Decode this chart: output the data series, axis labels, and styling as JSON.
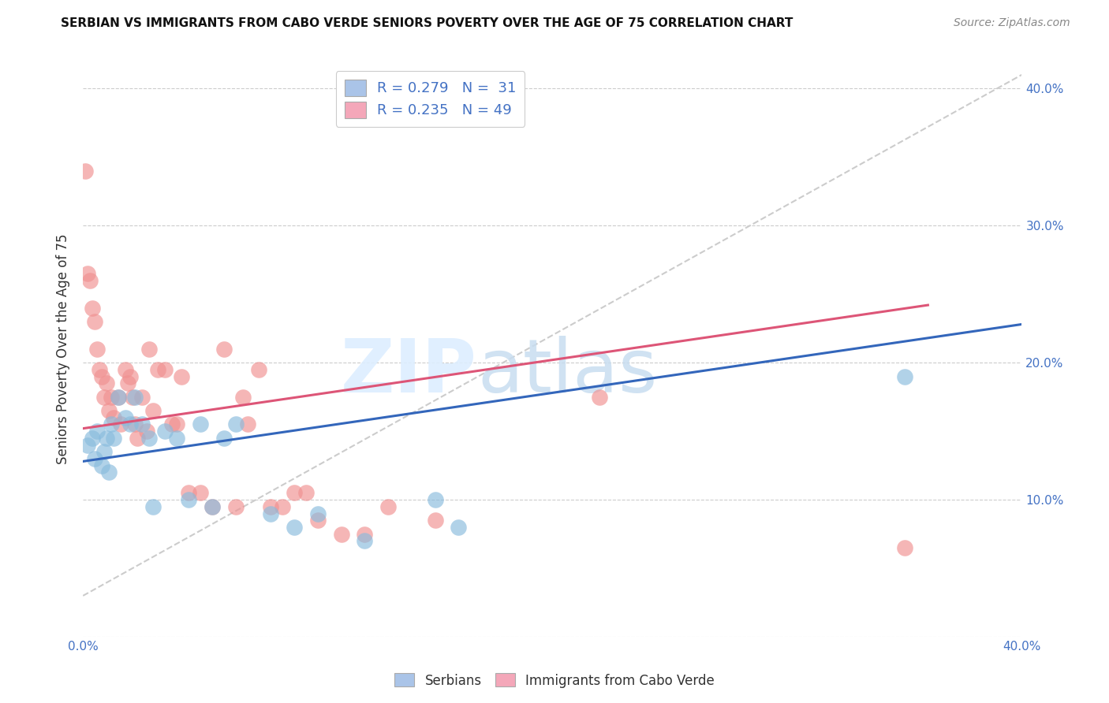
{
  "title": "SERBIAN VS IMMIGRANTS FROM CABO VERDE SENIORS POVERTY OVER THE AGE OF 75 CORRELATION CHART",
  "source": "Source: ZipAtlas.com",
  "ylabel": "Seniors Poverty Over the Age of 75",
  "xlim": [
    0.0,
    0.4
  ],
  "ylim": [
    0.0,
    0.42
  ],
  "legend1_label": "R = 0.279   N =  31",
  "legend2_label": "R = 0.235   N = 49",
  "legend1_color": "#aac4e8",
  "legend2_color": "#f4a7b9",
  "serbian_color": "#88bbdd",
  "cabo_verde_color": "#f09090",
  "serbian_line_color": "#3366bb",
  "cabo_verde_line_color": "#dd5577",
  "dashed_line_color": "#cccccc",
  "serbian_scatter_x": [
    0.002,
    0.004,
    0.005,
    0.006,
    0.008,
    0.009,
    0.01,
    0.011,
    0.012,
    0.013,
    0.015,
    0.018,
    0.02,
    0.022,
    0.025,
    0.028,
    0.03,
    0.035,
    0.04,
    0.045,
    0.05,
    0.055,
    0.06,
    0.065,
    0.08,
    0.09,
    0.1,
    0.12,
    0.15,
    0.16,
    0.35
  ],
  "serbian_scatter_y": [
    0.14,
    0.145,
    0.13,
    0.15,
    0.125,
    0.135,
    0.145,
    0.12,
    0.155,
    0.145,
    0.175,
    0.16,
    0.155,
    0.175,
    0.155,
    0.145,
    0.095,
    0.15,
    0.145,
    0.1,
    0.155,
    0.095,
    0.145,
    0.155,
    0.09,
    0.08,
    0.09,
    0.07,
    0.1,
    0.08,
    0.19
  ],
  "cabo_verde_scatter_x": [
    0.001,
    0.002,
    0.003,
    0.004,
    0.005,
    0.006,
    0.007,
    0.008,
    0.009,
    0.01,
    0.011,
    0.012,
    0.013,
    0.015,
    0.016,
    0.018,
    0.019,
    0.02,
    0.021,
    0.022,
    0.023,
    0.025,
    0.027,
    0.028,
    0.03,
    0.032,
    0.035,
    0.038,
    0.04,
    0.042,
    0.045,
    0.05,
    0.055,
    0.06,
    0.065,
    0.068,
    0.07,
    0.075,
    0.08,
    0.085,
    0.09,
    0.095,
    0.1,
    0.11,
    0.12,
    0.13,
    0.15,
    0.22,
    0.35
  ],
  "cabo_verde_scatter_y": [
    0.34,
    0.265,
    0.26,
    0.24,
    0.23,
    0.21,
    0.195,
    0.19,
    0.175,
    0.185,
    0.165,
    0.175,
    0.16,
    0.175,
    0.155,
    0.195,
    0.185,
    0.19,
    0.175,
    0.155,
    0.145,
    0.175,
    0.15,
    0.21,
    0.165,
    0.195,
    0.195,
    0.155,
    0.155,
    0.19,
    0.105,
    0.105,
    0.095,
    0.21,
    0.095,
    0.175,
    0.155,
    0.195,
    0.095,
    0.095,
    0.105,
    0.105,
    0.085,
    0.075,
    0.075,
    0.095,
    0.085,
    0.175,
    0.065
  ],
  "dashed_line_x": [
    0.0,
    0.4
  ],
  "dashed_line_y": [
    0.03,
    0.41
  ],
  "serbian_trend_x": [
    0.0,
    0.4
  ],
  "serbian_trend_y": [
    0.128,
    0.228
  ],
  "cabo_verde_trend_x": [
    0.0,
    0.36
  ],
  "cabo_verde_trend_y": [
    0.152,
    0.242
  ],
  "grid_color": "#cccccc",
  "tick_color": "#4472C4",
  "title_fontsize": 11,
  "axis_fontsize": 11,
  "source_fontsize": 10
}
